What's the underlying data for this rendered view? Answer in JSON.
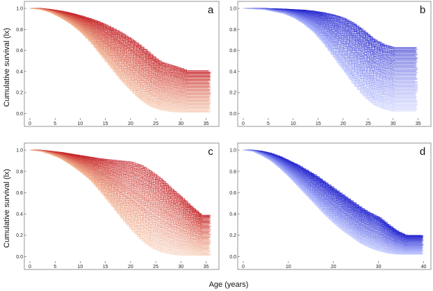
{
  "figure": {
    "ylabel": "Cumulative survival (lx)",
    "xlabel": "Age (years)"
  },
  "chart_data": [
    {
      "type": "line",
      "panel_label": "a",
      "color": "#c0141c",
      "fade_color": "#f3b08a",
      "xlim": [
        0,
        37
      ],
      "ylim": [
        -0.03,
        1.04
      ],
      "x_ticks": [
        0,
        5,
        10,
        15,
        20,
        25,
        30,
        35
      ],
      "y_ticks": [
        0.0,
        0.2,
        0.4,
        0.6,
        0.8,
        1.0
      ],
      "n_curves": 110,
      "curve_upper": {
        "x": [
          0,
          2,
          4,
          6,
          8,
          10,
          12,
          14,
          16,
          18,
          20,
          22,
          24,
          25,
          26,
          28,
          30,
          31,
          36
        ],
        "y": [
          1.0,
          1.0,
          0.99,
          0.975,
          0.955,
          0.93,
          0.9,
          0.865,
          0.82,
          0.77,
          0.71,
          0.64,
          0.56,
          0.52,
          0.49,
          0.46,
          0.43,
          0.41,
          0.41
        ]
      },
      "curve_lower": {
        "x": [
          0,
          2,
          4,
          6,
          8,
          10,
          12,
          14,
          16,
          18,
          20,
          22,
          24,
          26,
          28,
          30,
          36
        ],
        "y": [
          1.0,
          0.99,
          0.96,
          0.91,
          0.85,
          0.77,
          0.67,
          0.55,
          0.43,
          0.31,
          0.21,
          0.12,
          0.06,
          0.03,
          0.015,
          0.01,
          0.01
        ]
      }
    },
    {
      "type": "line",
      "panel_label": "b",
      "color": "#1414c8",
      "fade_color": "#a9b4ff",
      "xlim": [
        0,
        37
      ],
      "ylim": [
        -0.03,
        1.04
      ],
      "x_ticks": [
        0,
        5,
        10,
        15,
        20,
        25,
        30,
        35
      ],
      "y_ticks": [
        0.0,
        0.2,
        0.4,
        0.6,
        0.8,
        1.0
      ],
      "n_curves": 110,
      "curve_upper": {
        "x": [
          0,
          4,
          8,
          10,
          12,
          14,
          16,
          18,
          20,
          22,
          24,
          26,
          28,
          30,
          35
        ],
        "y": [
          1.0,
          1.0,
          0.995,
          0.99,
          0.985,
          0.975,
          0.96,
          0.94,
          0.91,
          0.86,
          0.79,
          0.71,
          0.66,
          0.63,
          0.63
        ]
      },
      "curve_lower": {
        "x": [
          0,
          4,
          8,
          10,
          12,
          14,
          16,
          18,
          20,
          22,
          24,
          26,
          28,
          30,
          35
        ],
        "y": [
          1.0,
          0.99,
          0.95,
          0.91,
          0.85,
          0.77,
          0.66,
          0.53,
          0.4,
          0.27,
          0.16,
          0.08,
          0.04,
          0.02,
          0.02
        ]
      }
    },
    {
      "type": "line",
      "panel_label": "c",
      "color": "#c0141c",
      "fade_color": "#f3b08a",
      "xlim": [
        0,
        37
      ],
      "ylim": [
        -0.03,
        1.04
      ],
      "x_ticks": [
        0,
        5,
        10,
        15,
        20,
        25,
        30,
        35
      ],
      "y_ticks": [
        0.0,
        0.2,
        0.4,
        0.6,
        0.8,
        1.0
      ],
      "n_curves": 110,
      "curve_upper": {
        "x": [
          0,
          2,
          4,
          6,
          8,
          10,
          12,
          14,
          16,
          18,
          20,
          22,
          24,
          26,
          28,
          30,
          32,
          34,
          36
        ],
        "y": [
          1.0,
          1.0,
          0.99,
          0.98,
          0.965,
          0.95,
          0.935,
          0.92,
          0.91,
          0.9,
          0.89,
          0.86,
          0.8,
          0.73,
          0.64,
          0.56,
          0.47,
          0.39,
          0.39
        ]
      },
      "curve_lower": {
        "x": [
          0,
          2,
          4,
          6,
          8,
          10,
          12,
          14,
          16,
          18,
          20,
          22,
          24,
          26,
          28,
          30,
          36
        ],
        "y": [
          1.0,
          0.99,
          0.96,
          0.92,
          0.86,
          0.79,
          0.71,
          0.6,
          0.48,
          0.36,
          0.25,
          0.15,
          0.08,
          0.04,
          0.02,
          0.01,
          0.01
        ]
      }
    },
    {
      "type": "line",
      "panel_label": "d",
      "color": "#1414c8",
      "fade_color": "#a9b4ff",
      "xlim": [
        0,
        41
      ],
      "ylim": [
        -0.03,
        1.04
      ],
      "x_ticks": [
        0,
        10,
        20,
        30,
        40
      ],
      "y_ticks": [
        0.0,
        0.2,
        0.4,
        0.6,
        0.8,
        1.0
      ],
      "n_curves": 110,
      "curve_upper": {
        "x": [
          0,
          2,
          4,
          6,
          8,
          10,
          12,
          14,
          16,
          18,
          20,
          22,
          24,
          26,
          28,
          30,
          32,
          34,
          36,
          40
        ],
        "y": [
          1.0,
          1.0,
          0.99,
          0.97,
          0.94,
          0.9,
          0.86,
          0.81,
          0.76,
          0.7,
          0.64,
          0.58,
          0.52,
          0.46,
          0.41,
          0.37,
          0.3,
          0.24,
          0.2,
          0.2
        ]
      },
      "curve_lower": {
        "x": [
          0,
          2,
          4,
          6,
          8,
          10,
          12,
          14,
          16,
          18,
          20,
          22,
          24,
          26,
          28,
          30,
          32,
          34,
          40
        ],
        "y": [
          1.0,
          0.99,
          0.95,
          0.9,
          0.83,
          0.75,
          0.66,
          0.57,
          0.48,
          0.39,
          0.31,
          0.24,
          0.18,
          0.12,
          0.08,
          0.05,
          0.03,
          0.02,
          0.02
        ]
      }
    }
  ]
}
